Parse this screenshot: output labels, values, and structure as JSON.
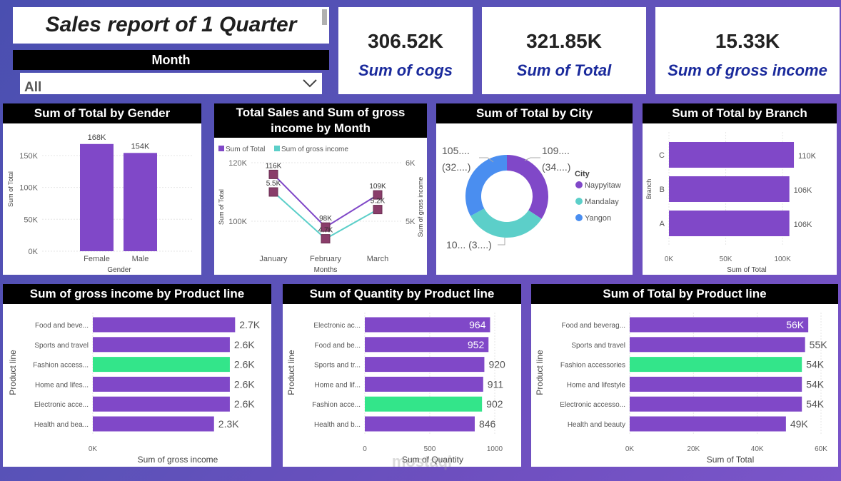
{
  "title": "Sales report of 1 Quarter",
  "slicer": {
    "label": "Month",
    "value": "All"
  },
  "kpis": [
    {
      "value": "306.52K",
      "label": "Sum of cogs"
    },
    {
      "value": "321.85K",
      "label": "Sum of Total"
    },
    {
      "value": "15.33K",
      "label": "Sum of gross income"
    }
  ],
  "colors": {
    "bar": "#8048c8",
    "highlight": "#33e58a",
    "teal": "#5ccfc9",
    "blue": "#4a8ef0",
    "kpi_label": "#1a2a9c"
  },
  "icons": {
    "dropdown": "chevron-down-icon"
  },
  "watermark": {
    "text": "mostaql"
  },
  "chart_data": [
    {
      "id": "gender",
      "type": "bar",
      "title": "Sum of Total by Gender",
      "categories": [
        "Female",
        "Male"
      ],
      "values": [
        168,
        154
      ],
      "data_labels": [
        "168K",
        "154K"
      ],
      "xlabel": "Gender",
      "ylabel": "Sum of Total",
      "ylim": [
        0,
        170
      ],
      "y_ticks": [
        0,
        50,
        100,
        150
      ],
      "y_tick_labels": [
        "0K",
        "50K",
        "100K",
        "150K"
      ],
      "unit": "K"
    },
    {
      "id": "month",
      "type": "line",
      "title": "Total Sales and Sum of gross income by Month",
      "categories": [
        "January",
        "February",
        "March"
      ],
      "xlabel": "Months",
      "ylabel": "Sum of Total",
      "y2label": "Sum of gross income",
      "y_tick_labels": [
        "120K",
        "100K"
      ],
      "y2_tick_labels": [
        "6K",
        "5K"
      ],
      "legend": [
        "Sum of Total",
        "Sum of gross income"
      ],
      "series": [
        {
          "name": "Sum of Total",
          "values": [
            116,
            98,
            109
          ],
          "labels": [
            "116K",
            "98K",
            "109K"
          ]
        },
        {
          "name": "Sum of gross income",
          "values": [
            5.5,
            4.7,
            5.2
          ],
          "labels": [
            "5.5K",
            "4.7K",
            "5.2K"
          ]
        }
      ]
    },
    {
      "id": "city",
      "type": "pie",
      "title": "Sum of Total by City",
      "legend_title": "City",
      "labels": [
        "Naypyitaw",
        "Mandalay",
        "Yangon"
      ],
      "values": [
        110,
        106,
        106
      ],
      "data_labels": [
        "109....",
        "10... (3....)",
        "105...."
      ],
      "data_sublabels": [
        "(34....)",
        "",
        "(32....)"
      ]
    },
    {
      "id": "branch",
      "type": "bar",
      "orientation": "horizontal",
      "title": "Sum of Total by Branch",
      "categories": [
        "C",
        "B",
        "A"
      ],
      "values": [
        110,
        106,
        106
      ],
      "data_labels": [
        "110K",
        "106K",
        "106K"
      ],
      "xlabel": "Sum of Total",
      "ylabel": "Branch",
      "x_tick_labels": [
        "0K",
        "50K",
        "100K"
      ],
      "xlim": [
        0,
        115
      ]
    },
    {
      "id": "gross",
      "type": "bar",
      "orientation": "horizontal",
      "title": "Sum of gross income by Product line",
      "categories": [
        "Food and beve...",
        "Sports and travel",
        "Fashion access...",
        "Home and lifes...",
        "Electronic acce...",
        "Health and bea..."
      ],
      "values": [
        2.7,
        2.6,
        2.6,
        2.6,
        2.6,
        2.3
      ],
      "data_labels": [
        "2.7K",
        "2.6K",
        "2.6K",
        "2.6K",
        "2.6K",
        "2.3K"
      ],
      "highlight_index": 2,
      "xlabel": "Sum of gross income",
      "ylabel": "Product line",
      "x_tick_labels": [
        "0K"
      ],
      "xlim": [
        0,
        2.75
      ]
    },
    {
      "id": "quantity",
      "type": "bar",
      "orientation": "horizontal",
      "title": "Sum of Quantity by Product line",
      "categories": [
        "Electronic ac...",
        "Food and be...",
        "Sports and tr...",
        "Home and lif...",
        "Fashion acce...",
        "Health and b..."
      ],
      "values": [
        964,
        952,
        920,
        911,
        902,
        846
      ],
      "data_labels": [
        "964",
        "952",
        "920",
        "911",
        "902",
        "846"
      ],
      "highlight_index": 4,
      "xlabel": "Sum of Quantity",
      "ylabel": "Product line",
      "x_tick_labels": [
        "0",
        "500",
        "1000"
      ],
      "xlim": [
        0,
        1000
      ]
    },
    {
      "id": "total",
      "type": "bar",
      "orientation": "horizontal",
      "title": "Sum of Total by Product line",
      "categories": [
        "Food and beverag...",
        "Sports and travel",
        "Fashion accessories",
        "Home and lifestyle",
        "Electronic accesso...",
        "Health and beauty"
      ],
      "values": [
        56,
        55,
        54,
        54,
        54,
        49
      ],
      "data_labels": [
        "56K",
        "55K",
        "54K",
        "54K",
        "54K",
        "49K"
      ],
      "highlight_index": 2,
      "xlabel": "Sum of Total",
      "ylabel": "Product line",
      "x_tick_labels": [
        "0K",
        "20K",
        "40K",
        "60K"
      ],
      "xlim": [
        0,
        60
      ]
    }
  ]
}
